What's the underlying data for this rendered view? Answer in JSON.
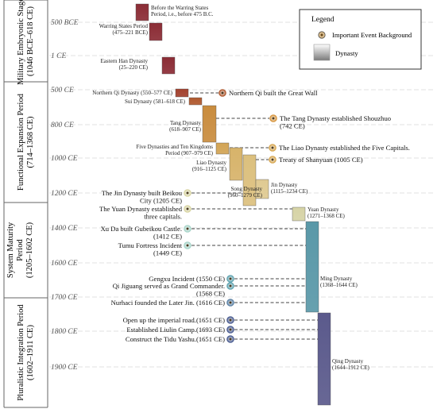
{
  "periods": [
    {
      "label": "Military Embryonic Stage\n(1046 BCE–618 CE)"
    },
    {
      "label": "Functional Expansion Period\n(714–1368 CE)"
    },
    {
      "label": "System Maturity\nPeriod\n(1205–1602 CE)"
    },
    {
      "label": "Pluralistic Integration Period\n(1602–1911 CE)"
    }
  ],
  "axis": {
    "ticks": [
      "500 BCE",
      "1 CE",
      "500 CE",
      "800 CE",
      "1000 CE",
      "1200 CE",
      "1400 CE",
      "1600 CE",
      "1700 CE",
      "1800 CE",
      "1900 CE"
    ]
  },
  "dynasties": [
    {
      "name": "Before the Warring States\nPeriod, i.e., before 475 B.C.",
      "color": "#8b2c35"
    },
    {
      "name": "Warring States Period\n(475–221 BCE)",
      "color": "#8b2c35"
    },
    {
      "name": "Eastern Han Dynasty\n(25–220 CE)",
      "color": "#8b2c35"
    },
    {
      "name": "Northern Qi Dynasty (550–577 CE)",
      "color": "#a3412e"
    },
    {
      "name": "Sui Dynasty (581–618 CE)",
      "color": "#b0592f"
    },
    {
      "name": "Tang Dynasty\n(618–907 CE)",
      "color": "#c98c3e"
    },
    {
      "name": "Five Dynasties and Ten Kingdoms\nPeriod (907–979 CE)",
      "color": "#d2a455"
    },
    {
      "name": "Liao Dynasty\n(916–1125 CE)",
      "color": "#d7b36a"
    },
    {
      "name": "Song Dynasty\n(960–1279 CE)",
      "color": "#dcc07e"
    },
    {
      "name": "Jin Dynasty\n(1115–1234 CE)",
      "color": "#dfca92"
    },
    {
      "name": "Yuan Dynasty\n(1271–1368 CE)",
      "color": "#d6d3a6"
    },
    {
      "name": "Ming Dynasty\n(1368–1644 CE)",
      "color": "#5a98a8"
    },
    {
      "name": "Qing Dynasty\n(1644–1912 CE)",
      "color": "#5b5a8c"
    }
  ],
  "events": [
    {
      "label": "Northern Qi built the Great Wall",
      "color": "#b0592f"
    },
    {
      "label": "The Tang Dynasty established Shouzhuo\n(742 CE)",
      "color": "#d6953e"
    },
    {
      "label": "The Liao Dynasty established the Five Capitals.",
      "color": "#d6a650"
    },
    {
      "label": "Treaty of Shanyuan (1005 CE)",
      "color": "#d6a650"
    },
    {
      "label": "The Jin Dynasty built Beikou\nCity (1205 CE)",
      "color": "#d8d4a2"
    },
    {
      "label": "The Yuan Dynasty established\nthree capitals.",
      "color": "#d8d4a2"
    },
    {
      "label": "Xu Da built Gubeikou Castle.\n(1412 CE)",
      "color": "#a7d4c9"
    },
    {
      "label": "Tumu Fortress Incident\n(1449 CE)",
      "color": "#a7d4c9"
    },
    {
      "label": "Gengxu Incident (1550 CE)",
      "color": "#5fa3b0"
    },
    {
      "label": "Qi Jiguang served as Grand Commander.\n(1568 CE)",
      "color": "#5fa3b0"
    },
    {
      "label": "Nurhaci founded the Later Jin. (1616 CE)",
      "color": "#5a80a4"
    },
    {
      "label": "Open up the imperial road.(1651 CE)",
      "color": "#4a5c90"
    },
    {
      "label": "Established Liulin Camp.(1693 CE)",
      "color": "#4a5c90"
    },
    {
      "label": "Construct the Tidu Yashu.(1651 CE)",
      "color": "#4a5c90"
    }
  ],
  "legend": {
    "title": "Legend",
    "items": [
      {
        "label": "Important Event Background"
      },
      {
        "label": "Dynasty"
      }
    ]
  }
}
